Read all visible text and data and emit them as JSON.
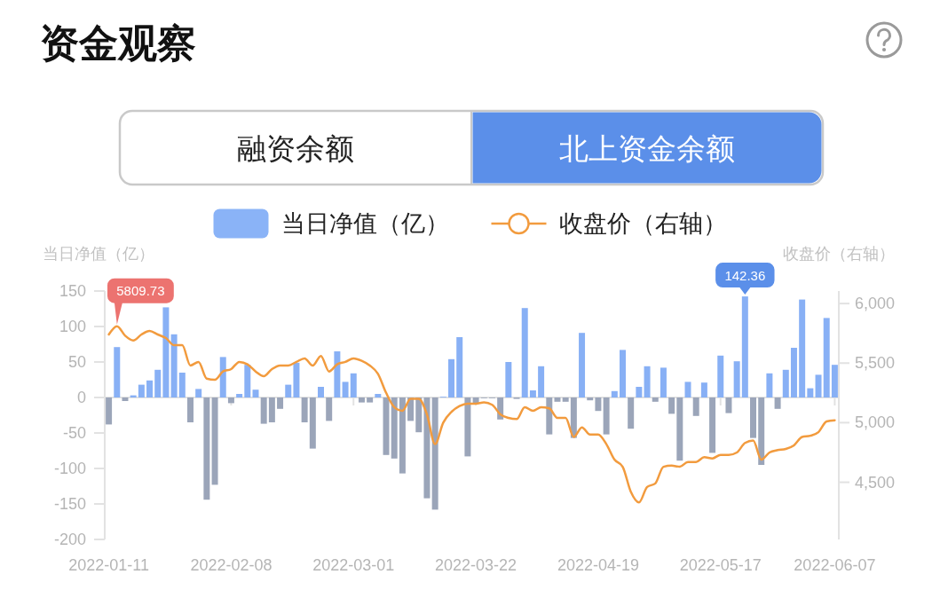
{
  "chart_data": {
    "type": "bar",
    "title": "资金观察",
    "annotations": [
      "融资余额",
      "北上资金余额"
    ],
    "ylabel": "当日净值（亿）",
    "y2label": "收盘价（右轴）",
    "legend": "top",
    "categories": [
      "2022-01-11",
      null,
      null,
      null,
      null,
      null,
      null,
      null,
      null,
      null,
      null,
      null,
      null,
      null,
      null,
      "2022-02-08",
      null,
      null,
      null,
      null,
      null,
      null,
      null,
      null,
      null,
      null,
      null,
      null,
      null,
      null,
      "2022-03-01",
      null,
      null,
      null,
      null,
      null,
      null,
      null,
      null,
      null,
      null,
      null,
      null,
      null,
      null,
      "2022-03-22",
      null,
      null,
      null,
      null,
      null,
      null,
      null,
      null,
      null,
      null,
      null,
      null,
      null,
      null,
      "2022-04-19",
      null,
      null,
      null,
      null,
      null,
      null,
      null,
      null,
      null,
      null,
      null,
      null,
      null,
      null,
      "2022-05-17",
      null,
      null,
      null,
      null,
      null,
      null,
      null,
      null,
      null,
      null,
      null,
      null,
      null,
      "2022-06-07"
    ],
    "series": [
      {
        "name": "当日净值（亿）",
        "color": "#8ab3f7",
        "colors": [
          "#9ba5b9",
          "#88b0f5",
          "#9ba5b9",
          "#88b0f5",
          "#88b0f5",
          "#88b0f5",
          "#88b0f5",
          "#88b0f5",
          "#88b0f5",
          "#88b0f5",
          "#9ba5b9",
          "#88b0f5",
          "#9ba5b9",
          "#9ba5b9",
          "#88b0f5",
          "#9ba5b9",
          "#88b0f5",
          "#88b0f5",
          "#88b0f5",
          "#9ba5b9",
          "#9ba5b9",
          "#9ba5b9",
          "#88b0f5",
          "#88b0f5",
          "#9ba5b9",
          "#9ba5b9",
          "#88b0f5",
          "#9ba5b9",
          "#88b0f5",
          "#88b0f5",
          "#88b0f5",
          "#9ba5b9",
          "#9ba5b9",
          "#88b0f5",
          "#9ba5b9",
          "#9ba5b9",
          "#9ba5b9",
          "#9ba5b9",
          "#9ba5b9",
          "#9ba5b9",
          "#9ba5b9",
          "#88b0f5",
          "#88b0f5",
          "#88b0f5",
          "#9ba5b9",
          "#9ba5b9",
          "#9ba5b9",
          "#9ba5b9",
          "#9ba5b9",
          "#88b0f5",
          "#9ba5b9",
          "#88b0f5",
          "#88b0f5",
          "#88b0f5",
          "#9ba5b9",
          "#9ba5b9",
          "#9ba5b9",
          "#9ba5b9",
          "#88b0f5",
          "#9ba5b9",
          "#9ba5b9",
          "#9ba5b9",
          "#88b0f5",
          "#88b0f5",
          "#9ba5b9",
          "#88b0f5",
          "#88b0f5",
          "#9ba5b9",
          "#88b0f5",
          "#9ba5b9",
          "#9ba5b9",
          "#88b0f5",
          "#9ba5b9",
          "#88b0f5",
          "#9ba5b9",
          "#88b0f5",
          "#9ba5b9",
          "#88b0f5",
          "#88b0f5",
          "#9ba5b9",
          "#9ba5b9",
          "#88b0f5",
          "#9ba5b9",
          "#88b0f5",
          "#88b0f5",
          "#88b0f5",
          "#88b0f5",
          "#88b0f5",
          "#88b0f5",
          "#88b0f5"
        ],
        "values": [
          -38,
          71,
          -5,
          3,
          18,
          24,
          39,
          127,
          89,
          35,
          -35,
          12,
          -144,
          -123,
          57,
          -8,
          5,
          46,
          11,
          -37,
          -35,
          -16,
          18,
          49,
          -35,
          -72,
          15,
          -33,
          65,
          22,
          34,
          -7,
          -7,
          5,
          -81,
          -86,
          -107,
          -33,
          -49,
          -142,
          -158,
          1,
          54,
          85,
          -83,
          -8,
          -1,
          -1,
          -31,
          50,
          -2,
          126,
          10,
          44,
          -52,
          -6,
          -6,
          -57,
          91,
          -4,
          -19,
          -52,
          9,
          67,
          -44,
          15,
          44,
          -6,
          42,
          -23,
          -89,
          22,
          -26,
          21,
          -78,
          59,
          -22,
          51,
          142.36,
          -57,
          -95,
          34,
          -16,
          39,
          70,
          138,
          13,
          32,
          112,
          46
        ],
        "value_labels": [
          null,
          null,
          null,
          null,
          null,
          null,
          null,
          null,
          null,
          null,
          null,
          null,
          null,
          null,
          null,
          null,
          null,
          null,
          null,
          null,
          null,
          null,
          null,
          null,
          null,
          null,
          null,
          null,
          null,
          null,
          null,
          null,
          null,
          null,
          null,
          null,
          null,
          null,
          null,
          null,
          null,
          null,
          null,
          null,
          null,
          null,
          null,
          null,
          null,
          null,
          null,
          null,
          null,
          null,
          null,
          null,
          null,
          null,
          null,
          null,
          null,
          null,
          null,
          null,
          null,
          null,
          null,
          null,
          null,
          null,
          null,
          null,
          null,
          null,
          null,
          null,
          null,
          null,
          "142.36",
          null,
          null,
          null,
          null,
          null,
          null,
          null,
          null,
          null,
          null,
          null
        ]
      },
      {
        "name": "收盘价（右轴）",
        "type": "line",
        "axis": "y2",
        "color": "#f29b3e",
        "values": [
          5740,
          5809.73,
          5730,
          5690,
          5740,
          5770,
          5740,
          5710,
          5650,
          5650,
          5480,
          5510,
          5370,
          5360,
          5430,
          5450,
          5510,
          5490,
          5430,
          5390,
          5450,
          5480,
          5480,
          5510,
          5540,
          5480,
          5560,
          5430,
          5490,
          5510,
          5540,
          5520,
          5480,
          5410,
          5250,
          5130,
          5100,
          5200,
          5200,
          5070,
          4820,
          5000,
          5090,
          5140,
          5160,
          5160,
          5170,
          5150,
          5070,
          5040,
          5030,
          5130,
          5100,
          5130,
          5120,
          5040,
          5040,
          4880,
          4960,
          4900,
          4900,
          4820,
          4690,
          4630,
          4420,
          4330,
          4460,
          4490,
          4630,
          4640,
          4630,
          4670,
          4670,
          4710,
          4700,
          4730,
          4730,
          4750,
          4830,
          4850,
          4690,
          4750,
          4770,
          4780,
          4810,
          4880,
          4890,
          4920,
          5010,
          5020
        ],
        "value_labels": [
          null,
          "5809.73",
          null,
          null,
          null,
          null,
          null,
          null,
          null,
          null,
          null,
          null,
          null,
          null,
          null,
          null,
          null,
          null,
          null,
          null,
          null,
          null,
          null,
          null,
          null,
          null,
          null,
          null,
          null,
          null,
          null,
          null,
          null,
          null,
          null,
          null,
          null,
          null,
          null,
          null,
          null,
          null,
          null,
          null,
          null,
          null,
          null,
          null,
          null,
          null,
          null,
          null,
          null,
          null,
          null,
          null,
          null,
          null,
          null,
          null,
          null,
          null,
          null,
          null,
          null,
          null,
          null,
          null,
          null,
          null,
          null,
          null,
          null,
          null,
          null,
          null,
          null,
          null,
          null,
          null,
          null,
          null,
          null,
          null,
          null,
          null,
          null,
          null,
          null,
          null
        ]
      }
    ],
    "ylim": [
      -200,
      150
    ],
    "yticks": [
      -200,
      -150,
      -100,
      -50,
      0,
      50,
      100,
      150
    ],
    "y2lim": [
      4020,
      6105
    ],
    "y2ticks": [
      {
        "value": 4500,
        "label": "4,500"
      },
      {
        "value": 5000,
        "label": "5,000"
      },
      {
        "value": 5500,
        "label": "5,500"
      },
      {
        "value": 6000,
        "label": "6,000"
      }
    ]
  }
}
